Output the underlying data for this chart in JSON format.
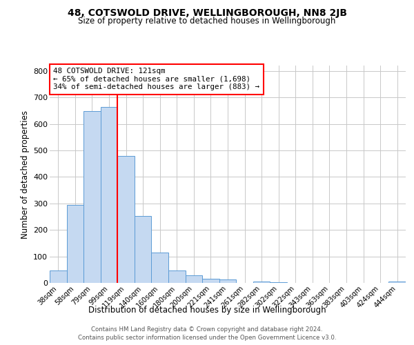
{
  "title": "48, COTSWOLD DRIVE, WELLINGBOROUGH, NN8 2JB",
  "subtitle": "Size of property relative to detached houses in Wellingborough",
  "xlabel": "Distribution of detached houses by size in Wellingborough",
  "ylabel": "Number of detached properties",
  "bar_labels": [
    "38sqm",
    "58sqm",
    "79sqm",
    "99sqm",
    "119sqm",
    "140sqm",
    "160sqm",
    "180sqm",
    "200sqm",
    "221sqm",
    "241sqm",
    "261sqm",
    "282sqm",
    "302sqm",
    "322sqm",
    "343sqm",
    "363sqm",
    "383sqm",
    "403sqm",
    "424sqm",
    "444sqm"
  ],
  "bar_values": [
    47,
    293,
    648,
    663,
    478,
    253,
    114,
    47,
    28,
    15,
    14,
    0,
    4,
    2,
    1,
    0,
    0,
    0,
    1,
    0,
    5
  ],
  "bar_color": "#c5d9f1",
  "bar_edge_color": "#5b9bd5",
  "vline_color": "#ff0000",
  "vline_x_index": 4,
  "ylim": [
    0,
    820
  ],
  "yticks": [
    0,
    100,
    200,
    300,
    400,
    500,
    600,
    700,
    800
  ],
  "annotation_title": "48 COTSWOLD DRIVE: 121sqm",
  "annotation_line1": "← 65% of detached houses are smaller (1,698)",
  "annotation_line2": "34% of semi-detached houses are larger (883) →",
  "annotation_box_color": "#ffffff",
  "annotation_box_edge": "#ff0000",
  "footer_line1": "Contains HM Land Registry data © Crown copyright and database right 2024.",
  "footer_line2": "Contains public sector information licensed under the Open Government Licence v3.0.",
  "background_color": "#ffffff",
  "grid_color": "#c8c8c8"
}
